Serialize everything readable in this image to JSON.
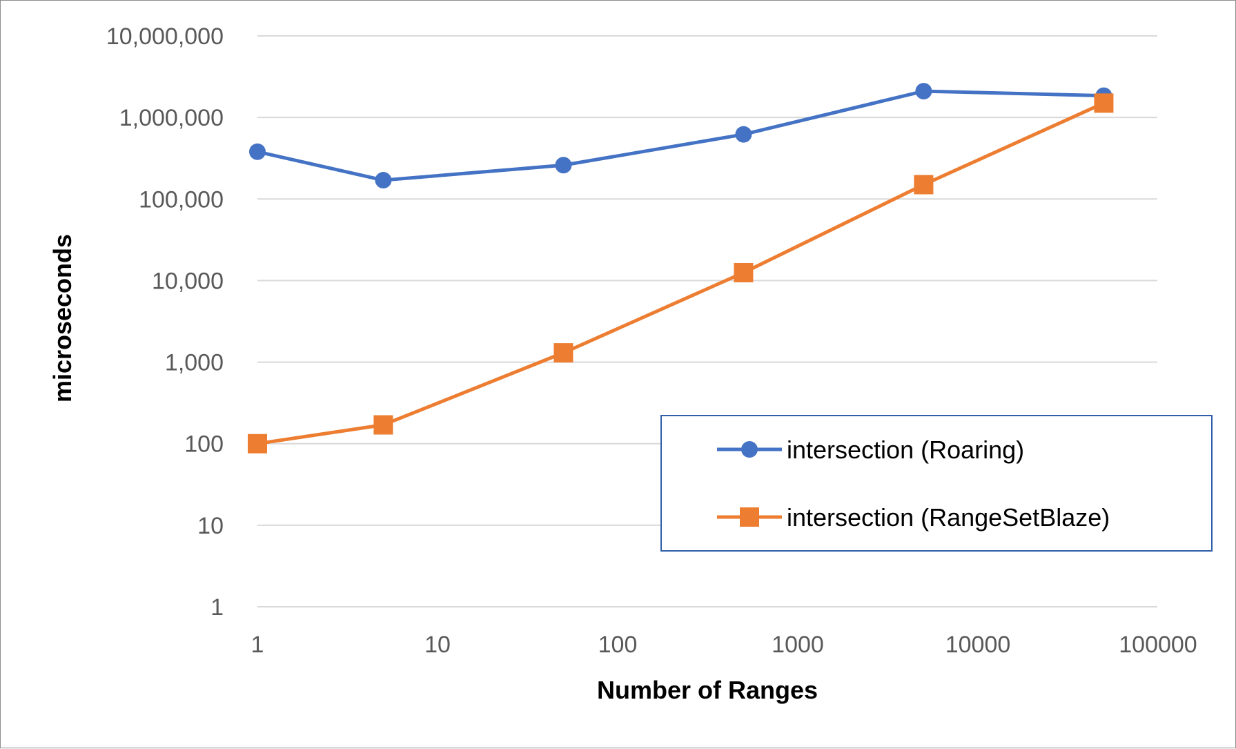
{
  "chart_data": {
    "type": "line",
    "title": "",
    "xlabel": "Number of Ranges",
    "ylabel": "microseconds",
    "x_scale": "log",
    "y_scale": "log",
    "xlim": [
      1,
      100000
    ],
    "ylim": [
      1,
      10000000
    ],
    "x_ticks": [
      {
        "value": 1,
        "label": "1"
      },
      {
        "value": 10,
        "label": "10"
      },
      {
        "value": 100,
        "label": "100"
      },
      {
        "value": 1000,
        "label": "1000"
      },
      {
        "value": 10000,
        "label": "10000"
      },
      {
        "value": 100000,
        "label": "100000"
      }
    ],
    "y_ticks": [
      {
        "value": 1,
        "label": "1"
      },
      {
        "value": 10,
        "label": "10"
      },
      {
        "value": 100,
        "label": "100"
      },
      {
        "value": 1000,
        "label": "1,000"
      },
      {
        "value": 10000,
        "label": "10,000"
      },
      {
        "value": 100000,
        "label": "100,000"
      },
      {
        "value": 1000000,
        "label": "1,000,000"
      },
      {
        "value": 10000000,
        "label": "10,000,000"
      }
    ],
    "grid": "horizontal",
    "legend_position": "bottom-right",
    "series": [
      {
        "name": "intersection (Roaring)",
        "color": "#4472C4",
        "marker": "circle",
        "x": [
          1,
          5,
          50,
          500,
          5000,
          50000
        ],
        "y": [
          380000,
          170000,
          260000,
          620000,
          2100000,
          1850000
        ]
      },
      {
        "name": "intersection (RangeSetBlaze)",
        "color": "#ED7D31",
        "marker": "square",
        "x": [
          1,
          5,
          50,
          500,
          5000,
          50000
        ],
        "y": [
          100,
          170,
          1300,
          12500,
          150000,
          1500000
        ]
      }
    ]
  }
}
